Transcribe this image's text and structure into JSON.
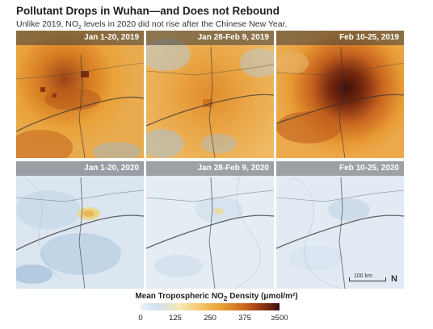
{
  "title": "Pollutant Drops in Wuhan—and Does not Rebound",
  "subtitle_parts": {
    "before": "Unlike 2019, NO",
    "sub": "2",
    "after": " levels in 2020 did not rise after the Chinese New Year."
  },
  "panels": [
    {
      "label": "Jan 1-20, 2019",
      "year": 2019
    },
    {
      "label": "Jan 28-Feb 9, 2019",
      "year": 2019
    },
    {
      "label": "Feb 10-25, 2019",
      "year": 2019
    },
    {
      "label": "Jan 1-20, 2020",
      "year": 2020
    },
    {
      "label": "Jan 28-Feb 9, 2020",
      "year": 2020
    },
    {
      "label": "Feb 10-25, 2020",
      "year": 2020
    }
  ],
  "scale_bar": "100 km",
  "north_arrow": "N",
  "legend": {
    "title_prefix": "Mean Tropospheric NO",
    "title_sub": "2",
    "title_suffix": " Density (μmol/m²)",
    "ticks": [
      "0",
      "125",
      "250",
      "375",
      "≥500"
    ],
    "colors": [
      "#eef3f8",
      "#cfe0ef",
      "#f7e9b8",
      "#f3c060",
      "#e69a2c",
      "#c9651c",
      "#8e3414",
      "#3a0e08"
    ]
  }
}
